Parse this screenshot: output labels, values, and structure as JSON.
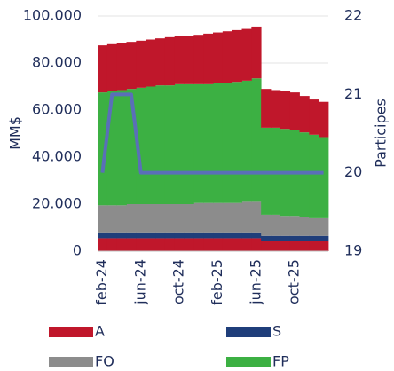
{
  "chart_data": {
    "type": "stacked-bar-line",
    "y_label": "MM$",
    "y2_label": "Participes",
    "categories": [
      "feb-24",
      null,
      null,
      null,
      "jun-24",
      null,
      null,
      null,
      "oct-24",
      null,
      null,
      null,
      "feb-25",
      null,
      null,
      null,
      "jun-25",
      null,
      null,
      null,
      "oct-25",
      null,
      null,
      null
    ],
    "series": [
      {
        "name": "A",
        "color": "#c0172b",
        "values": [
          5500,
          5500,
          5500,
          5500,
          5500,
          5500,
          5500,
          5500,
          5500,
          5500,
          5500,
          5500,
          5500,
          5500,
          5500,
          5500,
          5500,
          4500,
          4500,
          4500,
          4500,
          4500,
          4500,
          4500
        ]
      },
      {
        "name": "S",
        "color": "#1f3e7a",
        "values": [
          2500,
          2500,
          2500,
          2500,
          2500,
          2500,
          2500,
          2500,
          2500,
          2500,
          2500,
          2500,
          2500,
          2500,
          2500,
          2500,
          2500,
          2000,
          2000,
          2000,
          2000,
          2000,
          2000,
          2000
        ]
      },
      {
        "name": "FO",
        "color": "#8c8c8c",
        "values": [
          11500,
          11500,
          11500,
          12000,
          12000,
          12000,
          12000,
          12000,
          12000,
          12000,
          12500,
          12500,
          12500,
          12500,
          12500,
          13000,
          13000,
          9000,
          9000,
          8500,
          8500,
          8000,
          7500,
          7500
        ]
      },
      {
        "name": "FP",
        "color": "#3cb043",
        "values": [
          48000,
          48500,
          49000,
          49000,
          49500,
          50000,
          50500,
          50500,
          51000,
          51000,
          50500,
          50500,
          51000,
          51000,
          51500,
          51500,
          52500,
          37000,
          37000,
          37000,
          36500,
          36000,
          35500,
          34500
        ]
      },
      {
        "color": "#c0172b",
        "values": [
          20000,
          20000,
          20000,
          20000,
          20000,
          20000,
          20000,
          20500,
          20500,
          20500,
          21000,
          21500,
          21500,
          22000,
          22000,
          22000,
          22000,
          16500,
          16000,
          16000,
          16000,
          15500,
          15000,
          15000
        ]
      },
      {
        "color": "#5a6fb8",
        "axis": "y2",
        "line": true,
        "values": [
          20,
          21,
          21,
          21,
          20,
          20,
          20,
          20,
          20,
          20,
          20,
          20,
          20,
          20,
          20,
          20,
          20,
          20,
          20,
          20,
          20,
          20,
          20,
          20
        ]
      }
    ],
    "ylim": [
      0,
      100000
    ],
    "yticks": [
      0,
      {
        "value": 20000,
        "label": "20.000"
      },
      {
        "value": 40000,
        "label": "40.000"
      },
      {
        "value": 60000,
        "label": "60.000"
      },
      {
        "value": 80000,
        "label": "80.000"
      },
      {
        "value": 100000,
        "label": "100.000"
      }
    ],
    "y2lim": [
      19,
      22
    ],
    "y2ticks": [
      19,
      20,
      21,
      22
    ],
    "grid": true
  }
}
